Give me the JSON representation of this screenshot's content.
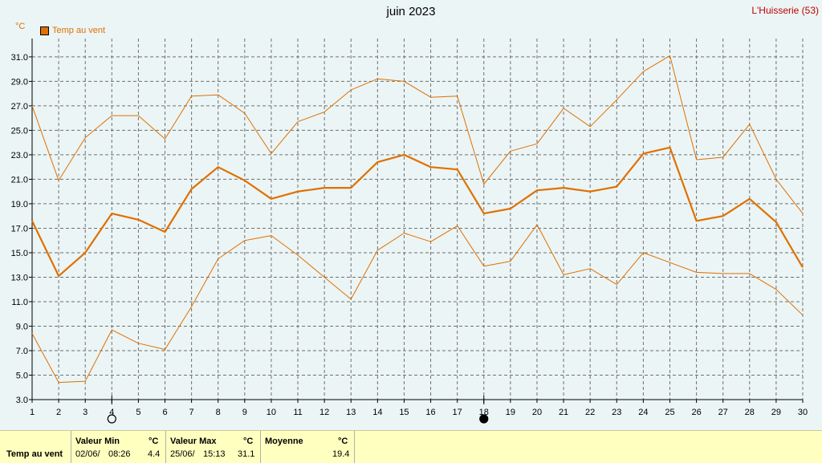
{
  "title": "juin 2023",
  "station": "L'Huisserie (53)",
  "unit": "°C",
  "legend": "Temp au vent",
  "colors": {
    "series": "#e07000",
    "grid": "#707070",
    "axis": "#000000",
    "background": "#ebf5f5",
    "stats_bg": "#ffffc0",
    "station": "#c00000"
  },
  "moon_phases": [
    {
      "day": 4,
      "icon": "full-moon-icon"
    },
    {
      "day": 18,
      "icon": "new-moon-icon"
    }
  ],
  "chart_data": {
    "type": "line",
    "x": [
      1,
      2,
      3,
      4,
      5,
      6,
      7,
      8,
      9,
      10,
      11,
      12,
      13,
      14,
      15,
      16,
      17,
      18,
      19,
      20,
      21,
      22,
      23,
      24,
      25,
      26,
      27,
      28,
      29,
      30
    ],
    "xlim": [
      1,
      30
    ],
    "ylim": [
      3.0,
      32.5
    ],
    "yticks": [
      "3.0",
      "5.0",
      "7.0",
      "9.0",
      "11.0",
      "13.0",
      "15.0",
      "17.0",
      "19.0",
      "21.0",
      "23.0",
      "25.0",
      "27.0",
      "29.0",
      "31.0"
    ],
    "grid": true,
    "legend": "top-left",
    "series": [
      {
        "role": "max",
        "values": [
          27.0,
          20.9,
          24.4,
          26.2,
          26.2,
          24.3,
          27.8,
          27.9,
          26.4,
          23.1,
          25.7,
          26.5,
          28.3,
          29.2,
          29.0,
          27.7,
          27.8,
          20.6,
          23.3,
          23.9,
          26.8,
          25.3,
          27.5,
          29.8,
          31.1,
          22.6,
          22.8,
          25.5,
          21.0,
          18.2
        ]
      },
      {
        "role": "mean",
        "name": "Temp au vent",
        "values": [
          17.6,
          13.1,
          15.0,
          18.2,
          17.7,
          16.7,
          20.2,
          22.0,
          20.9,
          19.4,
          20.0,
          20.3,
          20.3,
          22.4,
          23.0,
          22.0,
          21.8,
          18.2,
          18.6,
          20.1,
          20.3,
          20.0,
          20.4,
          23.1,
          23.6,
          17.6,
          18.0,
          19.4,
          17.5,
          13.8
        ]
      },
      {
        "role": "min",
        "values": [
          8.4,
          4.4,
          4.5,
          8.7,
          7.6,
          7.1,
          10.6,
          14.5,
          16.0,
          16.4,
          14.8,
          13.0,
          11.2,
          15.2,
          16.6,
          15.9,
          17.2,
          13.9,
          14.3,
          17.3,
          13.2,
          13.7,
          12.4,
          15.0,
          14.2,
          13.4,
          13.3,
          13.3,
          12.0,
          9.9
        ]
      }
    ]
  },
  "stats": {
    "row_label": "Temp au vent",
    "min": {
      "header": "Valeur Min",
      "unit": "°C",
      "date": "02/06/",
      "time": "08:26",
      "value": "4.4"
    },
    "max": {
      "header": "Valeur Max",
      "unit": "°C",
      "date": "25/06/",
      "time": "15:13",
      "value": "31.1"
    },
    "avg": {
      "header": "Moyenne",
      "unit": "°C",
      "value": "19.4"
    }
  }
}
